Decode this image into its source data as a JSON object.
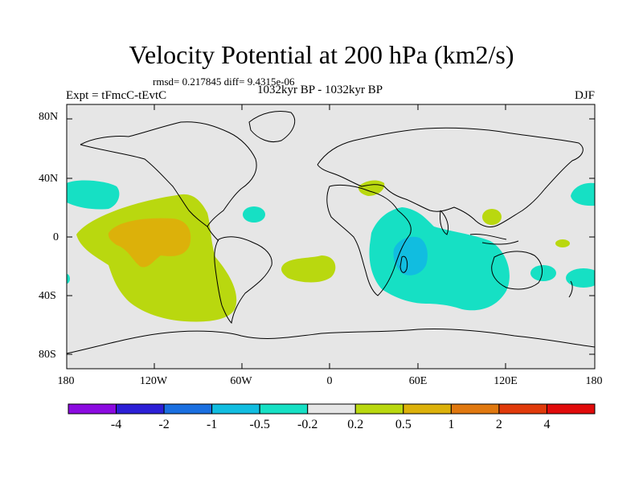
{
  "title": "Velocity Potential at 200 hPa (km2/s)",
  "stats_line": "rmsd= 0.217845 diff= 9.4315e-06",
  "left_label": "Expt = tFmcC-tEvtC",
  "center_label": "1032kyr BP - 1032kyr BP",
  "right_label": "DJF",
  "lat_ticks": [
    "80N",
    "40N",
    "0",
    "40S",
    "80S"
  ],
  "lon_ticks": [
    "180",
    "120W",
    "60W",
    "0",
    "60E",
    "120E",
    "180"
  ],
  "colorbar": {
    "labels": [
      "-4",
      "-2",
      "-1",
      "-0.5",
      "-0.2",
      "0.2",
      "0.5",
      "1",
      "2",
      "4"
    ],
    "colors": [
      "#8b0ae0",
      "#2c1fd6",
      "#1a6fe0",
      "#11bde0",
      "#16e0c4",
      "#e6e6e6",
      "#b9d80f",
      "#dcb10a",
      "#e0780f",
      "#e03a0a",
      "#e00a0a"
    ]
  },
  "colors": {
    "ocean_neutral": "#e6e6e6",
    "neg_weak": "#16e0c4",
    "neg_mid": "#11bde0",
    "pos_weak": "#b9d80f",
    "pos_mid": "#dcb10a"
  }
}
